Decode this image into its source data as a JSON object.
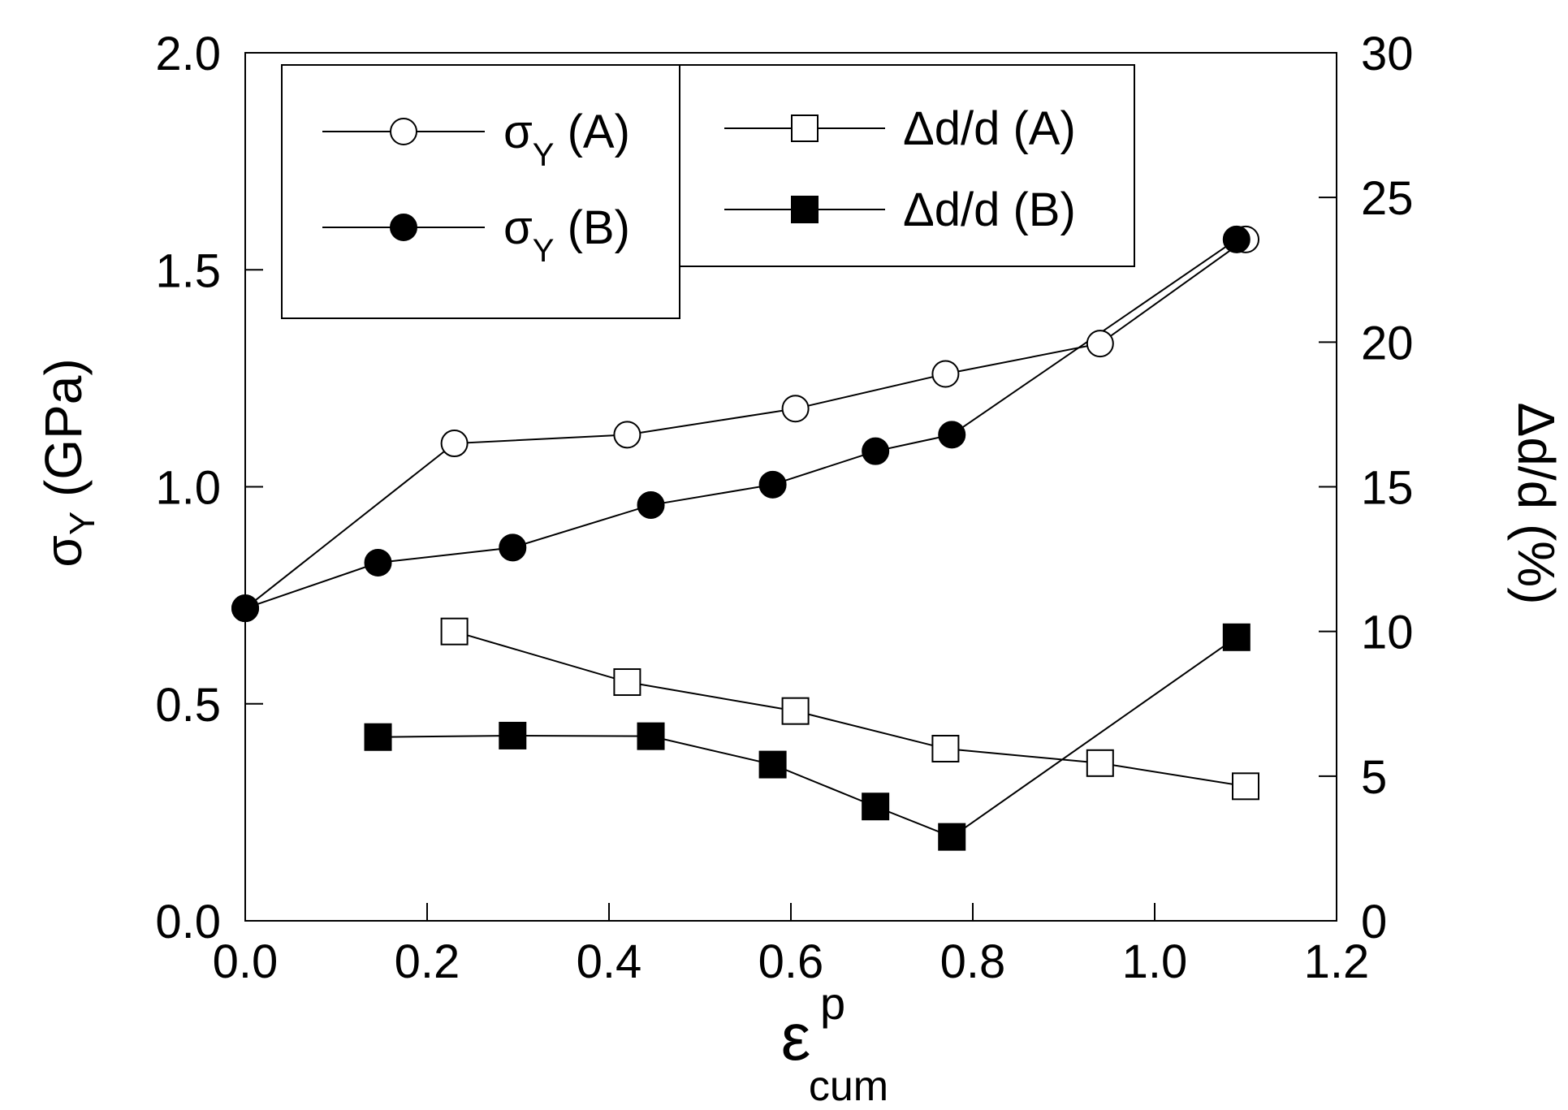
{
  "chart_data": {
    "type": "line",
    "x_axis": {
      "label": "ε",
      "label_superscript": "p",
      "label_subscript": "cum",
      "range": [
        0.0,
        1.2
      ],
      "ticks": [
        0.0,
        0.2,
        0.4,
        0.6,
        0.8,
        1.0,
        1.2
      ],
      "tick_labels": [
        "0.0",
        "0.2",
        "0.4",
        "0.6",
        "0.8",
        "1.0",
        "1.2"
      ]
    },
    "y_left": {
      "label": "σ",
      "label_subscript": "Y",
      "label_suffix": " (GPa)",
      "range": [
        0.0,
        2.0
      ],
      "ticks": [
        0.0,
        0.5,
        1.0,
        1.5,
        2.0
      ],
      "tick_labels": [
        "0.0",
        "0.5",
        "1.0",
        "1.5",
        "2.0"
      ]
    },
    "y_right": {
      "label": "Δd/d (%)",
      "range": [
        0,
        30
      ],
      "ticks": [
        0,
        5,
        10,
        15,
        20,
        25,
        30
      ],
      "tick_labels": [
        "0",
        "5",
        "10",
        "15",
        "20",
        "25",
        "30"
      ]
    },
    "series": [
      {
        "name": "σY (A)",
        "label_main": "σ",
        "label_sub": "Y",
        "label_suffix": " (A)",
        "axis": "left",
        "marker": "circle",
        "filled": false,
        "x": [
          0.0,
          0.23,
          0.42,
          0.605,
          0.77,
          0.94,
          1.1
        ],
        "y": [
          0.72,
          1.1,
          1.12,
          1.18,
          1.26,
          1.33,
          1.57
        ]
      },
      {
        "name": "σY (B)",
        "label_main": "σ",
        "label_sub": "Y",
        "label_suffix": " (B)",
        "axis": "left",
        "marker": "circle",
        "filled": true,
        "x": [
          0.0,
          0.146,
          0.294,
          0.446,
          0.58,
          0.693,
          0.777,
          1.09
        ],
        "y": [
          0.72,
          0.825,
          0.86,
          0.958,
          1.005,
          1.082,
          1.12,
          1.57
        ]
      },
      {
        "name": "Δd/d (A)",
        "axis": "right",
        "marker": "square",
        "filled": false,
        "x": [
          0.23,
          0.42,
          0.605,
          0.77,
          0.94,
          1.1
        ],
        "y": [
          10.0,
          8.25,
          7.25,
          5.95,
          5.45,
          4.65
        ]
      },
      {
        "name": "Δd/d (B)",
        "axis": "right",
        "marker": "square",
        "filled": true,
        "x": [
          0.146,
          0.294,
          0.446,
          0.58,
          0.693,
          0.777,
          1.09
        ],
        "y": [
          6.35,
          6.4,
          6.38,
          5.4,
          3.95,
          2.9,
          9.8
        ]
      }
    ],
    "legend": {
      "left_box": [
        "σY (A)",
        "σY (B)"
      ],
      "right_box": [
        "Δd/d (A)",
        "Δd/d (B)"
      ],
      "placement": "top-left"
    },
    "grid": false
  }
}
